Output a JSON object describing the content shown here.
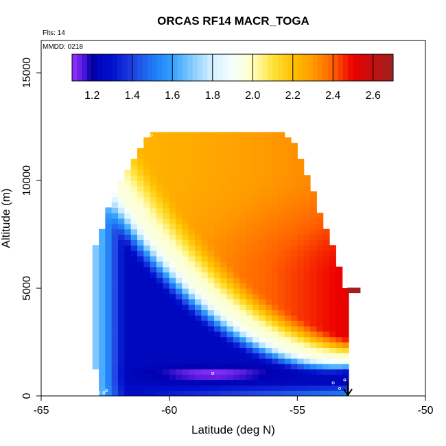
{
  "chart_data": {
    "type": "heatmap",
    "title": "ORCAS RF14 MACR_TOGA",
    "annotations": {
      "flights": "Flts: 14",
      "mmdd": "MMDD: 0218"
    },
    "xlabel": "Latitude (deg N)",
    "ylabel": "Altitude (m)",
    "xlim": [
      -65,
      -50
    ],
    "ylim": [
      0,
      16500
    ],
    "x_ticks": [
      {
        "value": -65,
        "label": "-65"
      },
      {
        "value": -60,
        "label": "-60"
      },
      {
        "value": -55,
        "label": "-55"
      },
      {
        "value": -50,
        "label": "-50"
      }
    ],
    "y_ticks": [
      {
        "value": 0,
        "label": "0"
      },
      {
        "value": 5000,
        "label": "5000"
      },
      {
        "value": 10000,
        "label": "10000"
      },
      {
        "value": 15000,
        "label": "15000"
      }
    ],
    "colorbar": {
      "range": [
        1.1,
        2.7
      ],
      "ticks": [
        {
          "value": 1.2,
          "label": "1.2"
        },
        {
          "value": 1.4,
          "label": "1.4"
        },
        {
          "value": 1.6,
          "label": "1.6"
        },
        {
          "value": 1.8,
          "label": "1.8"
        },
        {
          "value": 2.0,
          "label": "2.0"
        },
        {
          "value": 2.2,
          "label": "2.2"
        },
        {
          "value": 2.4,
          "label": "2.4"
        },
        {
          "value": 2.6,
          "label": "2.6"
        }
      ],
      "stops": [
        {
          "value": 1.1,
          "color": "#9b30ff"
        },
        {
          "value": 1.15,
          "color": "#5a1ee0"
        },
        {
          "value": 1.2,
          "color": "#0000b0"
        },
        {
          "value": 1.3,
          "color": "#0010cc"
        },
        {
          "value": 1.4,
          "color": "#2040e0"
        },
        {
          "value": 1.5,
          "color": "#1e78f5"
        },
        {
          "value": 1.6,
          "color": "#33a0ff"
        },
        {
          "value": 1.7,
          "color": "#88ccff"
        },
        {
          "value": 1.8,
          "color": "#d4f0ff"
        },
        {
          "value": 1.9,
          "color": "#f5ffff"
        },
        {
          "value": 2.0,
          "color": "#ffffc0"
        },
        {
          "value": 2.1,
          "color": "#ffe23a"
        },
        {
          "value": 2.2,
          "color": "#ffc000"
        },
        {
          "value": 2.3,
          "color": "#ff9a00"
        },
        {
          "value": 2.4,
          "color": "#ff6000"
        },
        {
          "value": 2.5,
          "color": "#ee0000"
        },
        {
          "value": 2.6,
          "color": "#c01010"
        },
        {
          "value": 2.7,
          "color": "#a02020"
        }
      ]
    },
    "domain": {
      "lat_min": -63.0,
      "lat_max": -53.0,
      "top_boundary": [
        [
          -63.0,
          6500
        ],
        [
          -62.8,
          7200
        ],
        [
          -62.5,
          8200
        ],
        [
          -62.2,
          9300
        ],
        [
          -61.8,
          10200
        ],
        [
          -61.3,
          11200
        ],
        [
          -60.7,
          12200
        ],
        [
          -55.5,
          12200
        ],
        [
          -55.0,
          11500
        ],
        [
          -54.5,
          9800
        ],
        [
          -54.0,
          8200
        ],
        [
          -53.5,
          6500
        ],
        [
          -53.2,
          5300
        ],
        [
          -53.0,
          4800
        ]
      ],
      "bottom_boundary": [
        [
          -63.0,
          1500
        ],
        [
          -62.8,
          1100
        ],
        [
          -62.7,
          100
        ],
        [
          -53.5,
          0
        ],
        [
          -53.0,
          0
        ]
      ]
    },
    "field_bands": [
      {
        "altitude": 0,
        "value": 1.5
      },
      {
        "altitude": 250,
        "value": 1.55
      },
      {
        "altitude": 600,
        "value": 1.25
      },
      {
        "altitude": 1000,
        "value": 1.2
      },
      {
        "altitude": 1500,
        "value": 1.5
      },
      {
        "altitude": 2000,
        "value": 1.75
      },
      {
        "altitude": 2500,
        "value": 1.95
      },
      {
        "altitude": 3000,
        "value": 2.15
      },
      {
        "altitude": 4500,
        "value": 2.35
      },
      {
        "altitude": 7000,
        "value": 2.35
      },
      {
        "altitude": 10000,
        "value": 2.3
      },
      {
        "altitude": 12200,
        "value": 2.3
      }
    ],
    "field_notes": "MACR_TOGA values: low (~1.1-1.4) near surface 500-1500 m; light blue/white band sloping from low altitude in north to high altitude in south; orange mid-troposphere; red (~2.4-2.6) at 3000-6000 m north of -57"
  }
}
